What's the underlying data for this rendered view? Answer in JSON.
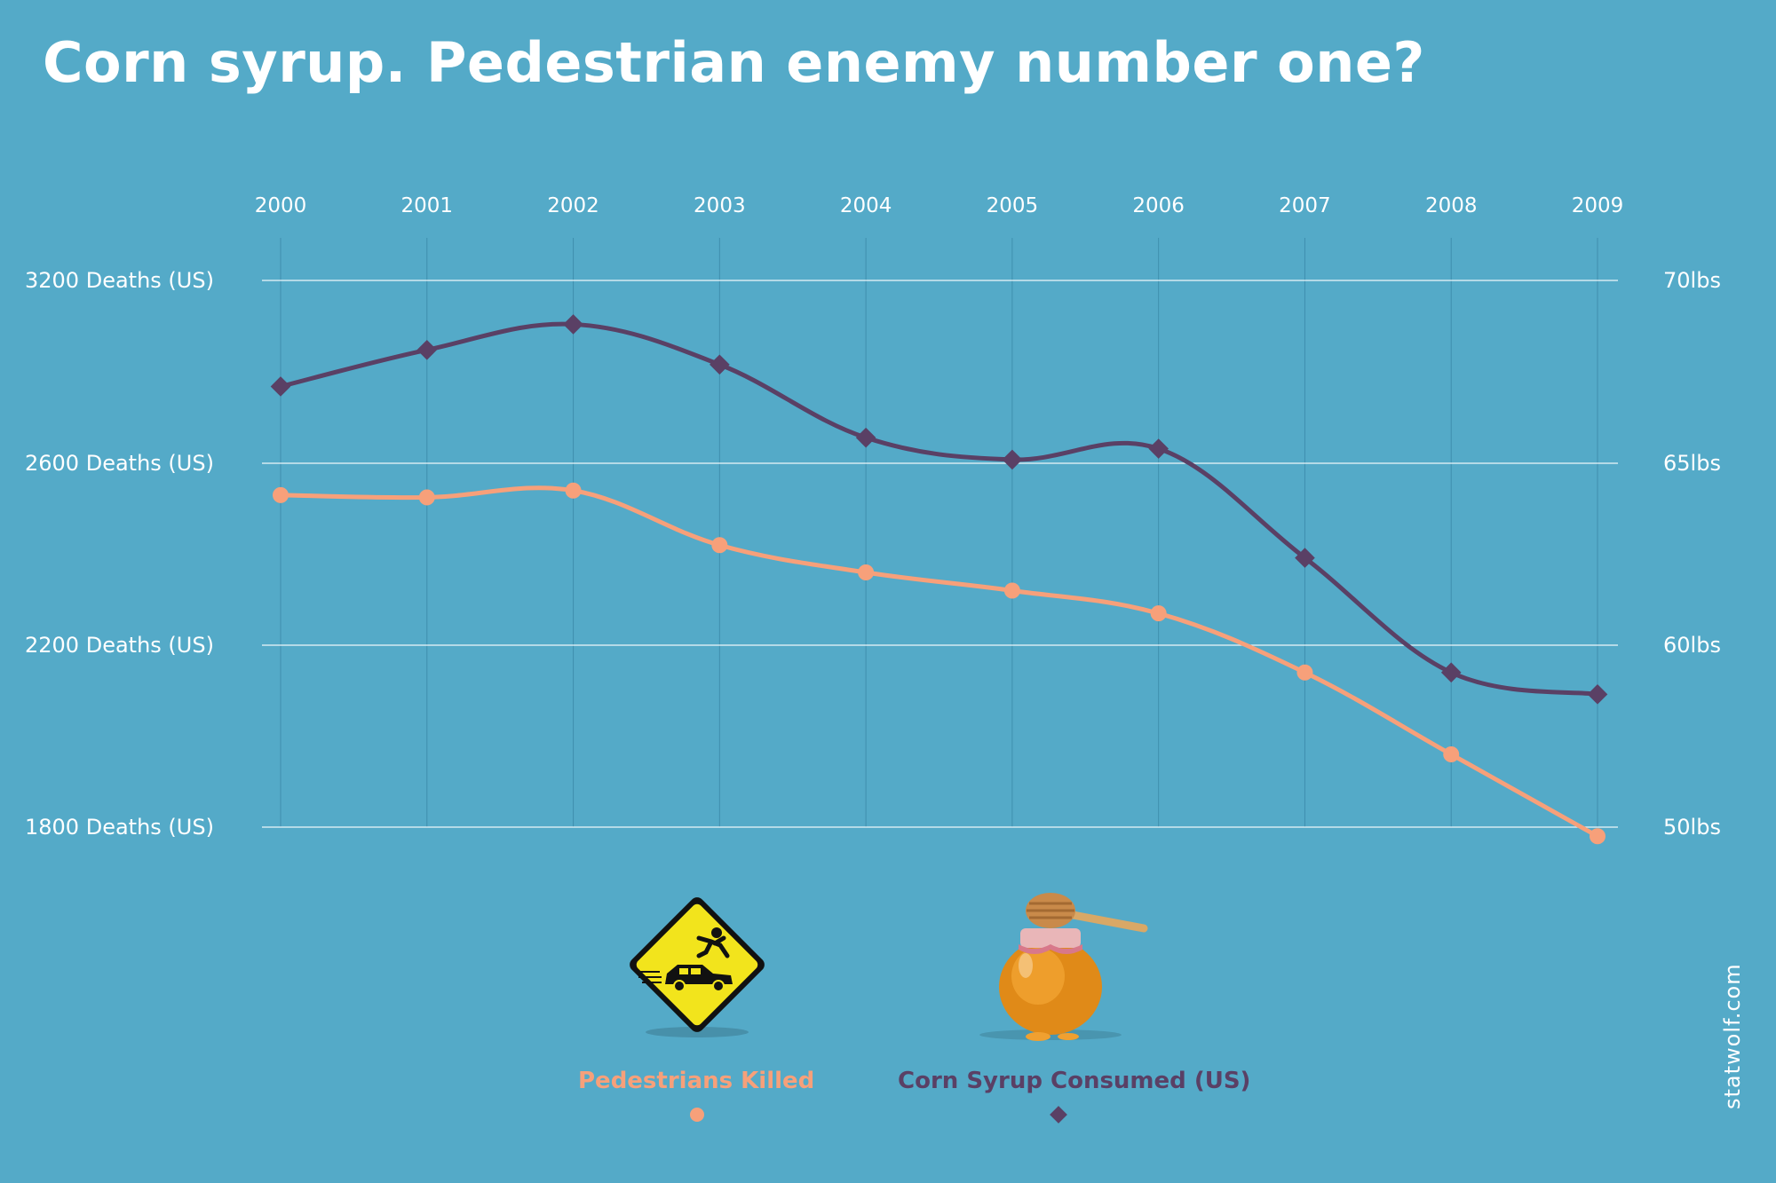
{
  "title": "Corn syrup. Pedestrian enemy number one?",
  "watermark": "statwolf.com",
  "colors": {
    "background": "#54aac8",
    "pedestrians": "#f7a07a",
    "corn_syrup": "#5a4065",
    "grid": "#ffffff"
  },
  "icons": {
    "pedestrians": "pedestrian-crossing-warning-sign-icon",
    "corn_syrup": "honey-jar-icon"
  },
  "chart_data": {
    "type": "line",
    "title": "Corn syrup. Pedestrian enemy number one?",
    "x": [
      "2000",
      "2001",
      "2002",
      "2003",
      "2004",
      "2005",
      "2006",
      "2007",
      "2008",
      "2009"
    ],
    "xlabel": "",
    "y_left": {
      "label": "",
      "ticks": [
        "1800 Deaths (US)",
        "2200 Deaths (US)",
        "2600 Deaths (US)",
        "3200 Deaths (US)"
      ],
      "tick_values": [
        1800,
        2200,
        2600,
        3200
      ],
      "range": [
        1800,
        3200
      ]
    },
    "y_right": {
      "label": "",
      "ticks": [
        "50lbs",
        "60lbs",
        "65lbs",
        "70lbs"
      ],
      "tick_values": [
        50,
        60,
        65,
        70
      ],
      "range": [
        50,
        70
      ]
    },
    "grid": true,
    "legend_position": "bottom-center",
    "series": [
      {
        "name": "Pedestrians Killed",
        "axis": "left",
        "marker": "circle",
        "values": [
          2530,
          2525,
          2540,
          2420,
          2360,
          2320,
          2270,
          2140,
          1960,
          1780
        ]
      },
      {
        "name": "Corn Syrup Consumed (US)",
        "axis": "right",
        "marker": "diamond",
        "values": [
          67.1,
          68.1,
          68.8,
          67.7,
          65.7,
          65.1,
          65.4,
          62.4,
          58.5,
          57.3
        ]
      }
    ]
  }
}
